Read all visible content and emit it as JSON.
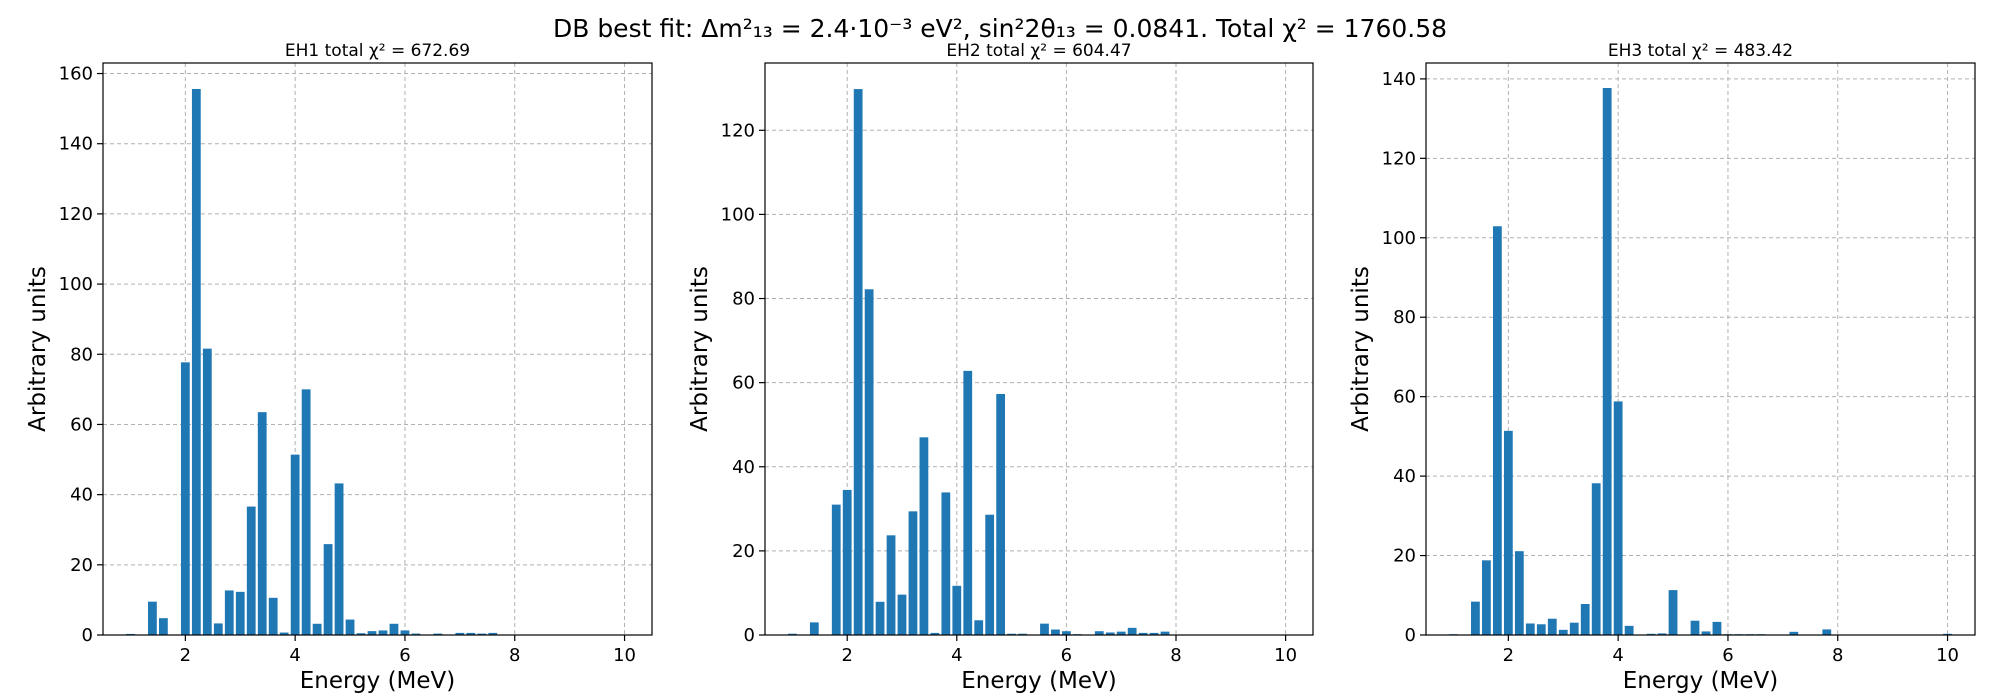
{
  "figure": {
    "suptitle": "DB best fit: Δm²₁₃ = 2.4·10⁻³ eV², sin²2θ₁₃ = 0.0841. Total χ² = 1760.58"
  },
  "chart_data": [
    {
      "type": "bar",
      "title": "EH1 total χ² = 672.69",
      "xlabel": "Energy (MeV)",
      "ylabel": "Arbitrary units",
      "xlim": [
        0.5,
        10.5
      ],
      "ylim": [
        0,
        163
      ],
      "xticks": [
        2,
        4,
        6,
        8,
        10
      ],
      "yticks": [
        0,
        20,
        40,
        60,
        80,
        100,
        120,
        140,
        160
      ],
      "grid": true,
      "color": "#1f77b4",
      "bar_width": 0.16,
      "x": [
        1.0,
        1.4,
        1.6,
        2.0,
        2.2,
        2.4,
        2.6,
        2.8,
        3.0,
        3.2,
        3.4,
        3.6,
        3.8,
        4.0,
        4.2,
        4.4,
        4.6,
        4.8,
        5.0,
        5.2,
        5.4,
        5.6,
        5.8,
        6.0,
        6.2,
        6.4,
        6.6,
        6.8,
        7.0,
        7.2,
        7.4,
        7.6
      ],
      "values": [
        0.3,
        9.5,
        4.8,
        77.7,
        155.6,
        81.6,
        3.3,
        12.7,
        12.3,
        36.6,
        63.5,
        10.6,
        0.7,
        51.4,
        70.0,
        3.2,
        25.9,
        43.2,
        4.4,
        0.5,
        1.1,
        1.3,
        3.2,
        1.3,
        0.4,
        0.1,
        0.4,
        0.1,
        0.6,
        0.6,
        0.4,
        0.6
      ]
    },
    {
      "type": "bar",
      "title": "EH2 total χ² = 604.47",
      "xlabel": "Energy (MeV)",
      "ylabel": "Arbitrary units",
      "xlim": [
        0.5,
        10.5
      ],
      "ylim": [
        0,
        136
      ],
      "xticks": [
        2,
        4,
        6,
        8,
        10
      ],
      "yticks": [
        0,
        20,
        40,
        60,
        80,
        100,
        120
      ],
      "grid": true,
      "color": "#1f77b4",
      "bar_width": 0.16,
      "x": [
        1.0,
        1.4,
        1.8,
        2.0,
        2.2,
        2.4,
        2.6,
        2.8,
        3.0,
        3.2,
        3.4,
        3.6,
        3.8,
        4.0,
        4.2,
        4.4,
        4.6,
        4.8,
        5.0,
        5.2,
        5.6,
        5.8,
        6.0,
        6.2,
        6.4,
        6.6,
        6.8,
        7.0,
        7.2,
        7.4,
        7.6,
        7.8
      ],
      "values": [
        0.3,
        3.0,
        31.0,
        34.5,
        129.8,
        82.2,
        7.9,
        23.7,
        9.6,
        29.4,
        47.0,
        0.5,
        33.9,
        11.7,
        62.8,
        3.5,
        28.6,
        57.3,
        0.3,
        0.3,
        2.7,
        1.3,
        0.9,
        0.2,
        0.1,
        0.9,
        0.6,
        0.8,
        1.7,
        0.5,
        0.5,
        0.8
      ]
    },
    {
      "type": "bar",
      "title": "EH3 total χ² = 483.42",
      "xlabel": "Energy (MeV)",
      "ylabel": "Arbitrary units",
      "xlim": [
        0.5,
        10.5
      ],
      "ylim": [
        0,
        144
      ],
      "xticks": [
        2,
        4,
        6,
        8,
        10
      ],
      "yticks": [
        0,
        20,
        40,
        60,
        80,
        100,
        120,
        140
      ],
      "grid": true,
      "color": "#1f77b4",
      "bar_width": 0.16,
      "x": [
        1.0,
        1.4,
        1.6,
        1.8,
        2.0,
        2.2,
        2.4,
        2.6,
        2.8,
        3.0,
        3.2,
        3.4,
        3.6,
        3.8,
        4.0,
        4.2,
        4.6,
        4.8,
        5.0,
        5.4,
        5.6,
        5.8,
        6.0,
        6.2,
        6.4,
        6.6,
        6.8,
        7.2,
        7.8,
        10.0
      ],
      "values": [
        0.2,
        8.4,
        18.8,
        102.9,
        51.4,
        21.1,
        2.9,
        2.7,
        4.1,
        1.3,
        3.1,
        7.8,
        38.2,
        137.7,
        58.8,
        2.3,
        0.3,
        0.4,
        11.3,
        3.6,
        0.9,
        3.3,
        0.2,
        0.2,
        0.2,
        0.2,
        0.1,
        0.8,
        1.4,
        0.3
      ]
    }
  ]
}
